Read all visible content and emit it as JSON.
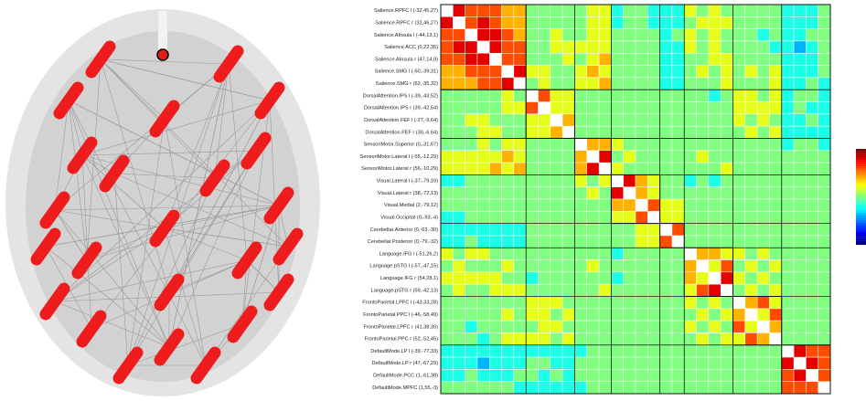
{
  "chart_data": {
    "type": "heatmap",
    "categories": [
      "Salience.RPFC l (-32,45,27)",
      "Salience.RPFC r (32,46,27)",
      "Salience.AInsula l (-44,13,1)",
      "Salience.ACC (0,22,35)",
      "Salience.AInsula r (47,14,0)",
      "Salience.SMG l (-60,-39,31)",
      "Salience.SMG r (62,-35,32)",
      "DorsalAttention.IPS l (-39,-43,52)",
      "DorsalAttention.IPS r (39,-42,54)",
      "DorsalAttention.FEF l (-27,-9,64)",
      "DorsalAttention.FEF r (30,-6,64)",
      "SensoriMotor.Superior (0,-31,67)",
      "SensoriMotor.Lateral l (-55,-12,29)",
      "SensoriMotor.Lateral r (56,-10,29)",
      "Visual.Lateral l (-37,-79,10)",
      "Visual.Lateral r (38,-72,13)",
      "Visual.Medial (2,-79,12)",
      "Visual.Occipital (0,-93,-4)",
      "Cerebellar.Anterior (0,-63,-30)",
      "Cerebellar.Posterior (0,-79,-32)",
      "Language.IFG l (-51,26,2)",
      "Language.pSTG l (-57,-47,15)",
      "Language.IFG r (54,28,1)",
      "Language.pSTG r (59,-42,13)",
      "FrontoParietal.LPFC l (-43,33,28)",
      "FrontoParietal.PPC l (-46,-58,49)",
      "FrontoParietal.LPFC r (41,38,30)",
      "FrontoParietal.PPC r (52,-52,45)",
      "DefaultMode.LP l (-39,-77,33)",
      "DefaultMode.LP r (47,-67,29)",
      "DefaultMode.PCC (1,-61,38)",
      "DefaultMode.MPFC (1,55,-3)"
    ],
    "values": [
      [
        null,
        0.9,
        0.8,
        0.8,
        0.8,
        0.7,
        0.7,
        0.5,
        0.5,
        0.5,
        0.5,
        0.5,
        0.6,
        0.6,
        0.4,
        0.5,
        0.5,
        0.4,
        0.4,
        0.4,
        0.6,
        0.5,
        0.6,
        0.5,
        0.5,
        0.5,
        0.5,
        0.5,
        0.4,
        0.4,
        0.4,
        0.5
      ],
      [
        0.9,
        null,
        0.8,
        0.9,
        0.8,
        0.7,
        0.7,
        0.5,
        0.5,
        0.5,
        0.5,
        0.5,
        0.6,
        0.6,
        0.4,
        0.5,
        0.5,
        0.4,
        0.4,
        0.4,
        0.5,
        0.6,
        0.6,
        0.6,
        0.5,
        0.5,
        0.5,
        0.5,
        0.4,
        0.4,
        0.4,
        0.5
      ],
      [
        0.8,
        0.8,
        null,
        0.9,
        0.9,
        0.8,
        0.7,
        0.5,
        0.5,
        0.6,
        0.5,
        0.5,
        0.6,
        0.6,
        0.5,
        0.5,
        0.5,
        0.5,
        0.4,
        0.5,
        0.6,
        0.5,
        0.6,
        0.5,
        0.5,
        0.5,
        0.4,
        0.5,
        0.4,
        0.4,
        0.5,
        0.5
      ],
      [
        0.8,
        0.9,
        0.9,
        null,
        0.9,
        0.8,
        0.8,
        0.5,
        0.5,
        0.6,
        0.6,
        0.6,
        0.6,
        0.6,
        0.5,
        0.5,
        0.5,
        0.5,
        0.4,
        0.4,
        0.6,
        0.5,
        0.6,
        0.5,
        0.5,
        0.5,
        0.5,
        0.4,
        0.4,
        0.3,
        0.4,
        0.5
      ],
      [
        0.8,
        0.8,
        0.9,
        0.9,
        null,
        0.8,
        0.8,
        0.5,
        0.5,
        0.5,
        0.6,
        0.5,
        0.6,
        0.7,
        0.5,
        0.5,
        0.5,
        0.5,
        0.4,
        0.4,
        0.5,
        0.5,
        0.6,
        0.6,
        0.5,
        0.5,
        0.5,
        0.5,
        0.4,
        0.4,
        0.4,
        0.5
      ],
      [
        0.7,
        0.7,
        0.8,
        0.8,
        0.8,
        null,
        0.9,
        0.6,
        0.6,
        0.5,
        0.5,
        0.6,
        0.7,
        0.6,
        0.5,
        0.5,
        0.5,
        0.5,
        0.4,
        0.4,
        0.5,
        0.6,
        0.5,
        0.6,
        0.5,
        0.6,
        0.5,
        0.6,
        0.4,
        0.4,
        0.4,
        0.5
      ],
      [
        0.7,
        0.7,
        0.7,
        0.8,
        0.8,
        0.9,
        null,
        0.5,
        0.6,
        0.5,
        0.5,
        0.6,
        0.6,
        0.7,
        0.5,
        0.5,
        0.5,
        0.5,
        0.4,
        0.4,
        0.5,
        0.5,
        0.5,
        0.6,
        0.5,
        0.5,
        0.5,
        0.6,
        0.4,
        0.4,
        0.5,
        0.4
      ],
      [
        0.5,
        0.5,
        0.5,
        0.5,
        0.5,
        0.6,
        0.5,
        null,
        0.8,
        0.6,
        0.6,
        0.5,
        0.5,
        0.5,
        0.5,
        0.5,
        0.5,
        0.5,
        0.5,
        0.5,
        0.5,
        0.5,
        0.4,
        0.5,
        0.6,
        0.6,
        0.5,
        0.6,
        0.4,
        0.5,
        0.5,
        0.4
      ],
      [
        0.5,
        0.5,
        0.5,
        0.5,
        0.5,
        0.6,
        0.6,
        0.8,
        null,
        0.6,
        0.6,
        0.5,
        0.5,
        0.5,
        0.5,
        0.5,
        0.5,
        0.5,
        0.5,
        0.5,
        0.5,
        0.5,
        0.5,
        0.5,
        0.6,
        0.6,
        0.6,
        0.6,
        0.4,
        0.5,
        0.4,
        0.4
      ],
      [
        0.5,
        0.5,
        0.6,
        0.6,
        0.5,
        0.5,
        0.5,
        0.6,
        0.6,
        null,
        0.7,
        0.5,
        0.5,
        0.5,
        0.5,
        0.5,
        0.5,
        0.5,
        0.5,
        0.5,
        0.5,
        0.5,
        0.5,
        0.5,
        0.6,
        0.5,
        0.6,
        0.5,
        0.4,
        0.4,
        0.5,
        0.4
      ],
      [
        0.5,
        0.5,
        0.5,
        0.6,
        0.6,
        0.5,
        0.5,
        0.6,
        0.6,
        0.7,
        null,
        0.5,
        0.5,
        0.5,
        0.5,
        0.5,
        0.5,
        0.5,
        0.5,
        0.5,
        0.5,
        0.5,
        0.5,
        0.5,
        0.5,
        0.6,
        0.5,
        0.6,
        0.4,
        0.4,
        0.4,
        0.4
      ],
      [
        0.5,
        0.5,
        0.5,
        0.6,
        0.5,
        0.6,
        0.6,
        0.5,
        0.5,
        0.5,
        0.5,
        null,
        0.7,
        0.7,
        0.6,
        0.5,
        0.5,
        0.5,
        0.5,
        0.5,
        0.5,
        0.5,
        0.5,
        0.5,
        0.5,
        0.5,
        0.5,
        0.5,
        0.4,
        0.5,
        0.5,
        0.4
      ],
      [
        0.6,
        0.6,
        0.6,
        0.6,
        0.6,
        0.7,
        0.6,
        0.5,
        0.5,
        0.5,
        0.5,
        0.7,
        null,
        0.9,
        0.5,
        0.6,
        0.5,
        0.5,
        0.5,
        0.5,
        0.5,
        0.6,
        0.5,
        0.5,
        0.5,
        0.5,
        0.5,
        0.5,
        0.5,
        0.5,
        0.5,
        0.5
      ],
      [
        0.6,
        0.6,
        0.6,
        0.6,
        0.7,
        0.6,
        0.7,
        0.5,
        0.5,
        0.5,
        0.5,
        0.7,
        0.9,
        null,
        0.6,
        0.5,
        0.5,
        0.5,
        0.5,
        0.5,
        0.5,
        0.5,
        0.5,
        0.6,
        0.5,
        0.5,
        0.5,
        0.5,
        0.5,
        0.5,
        0.5,
        0.5
      ],
      [
        0.4,
        0.4,
        0.5,
        0.5,
        0.5,
        0.5,
        0.5,
        0.5,
        0.5,
        0.5,
        0.5,
        0.6,
        0.5,
        0.6,
        null,
        0.9,
        0.7,
        0.6,
        0.5,
        0.5,
        0.4,
        0.5,
        0.4,
        0.5,
        0.5,
        0.5,
        0.5,
        0.5,
        0.5,
        0.5,
        0.5,
        0.5
      ],
      [
        0.5,
        0.5,
        0.5,
        0.5,
        0.5,
        0.5,
        0.5,
        0.5,
        0.5,
        0.5,
        0.5,
        0.5,
        0.6,
        0.5,
        0.9,
        null,
        0.7,
        0.6,
        0.5,
        0.5,
        0.5,
        0.5,
        0.5,
        0.5,
        0.5,
        0.5,
        0.5,
        0.5,
        0.5,
        0.5,
        0.5,
        0.5
      ],
      [
        0.5,
        0.5,
        0.5,
        0.5,
        0.5,
        0.5,
        0.5,
        0.5,
        0.5,
        0.5,
        0.5,
        0.5,
        0.5,
        0.5,
        0.7,
        0.7,
        null,
        0.8,
        0.6,
        0.6,
        0.5,
        0.5,
        0.5,
        0.5,
        0.5,
        0.5,
        0.5,
        0.5,
        0.5,
        0.5,
        0.5,
        0.5
      ],
      [
        0.4,
        0.4,
        0.5,
        0.5,
        0.5,
        0.5,
        0.5,
        0.5,
        0.5,
        0.5,
        0.5,
        0.5,
        0.5,
        0.5,
        0.6,
        0.6,
        0.8,
        null,
        0.6,
        0.6,
        0.5,
        0.5,
        0.5,
        0.5,
        0.5,
        0.5,
        0.5,
        0.5,
        0.5,
        0.5,
        0.5,
        0.5
      ],
      [
        0.4,
        0.4,
        0.4,
        0.4,
        0.4,
        0.4,
        0.4,
        0.5,
        0.5,
        0.5,
        0.5,
        0.5,
        0.5,
        0.5,
        0.5,
        0.5,
        0.6,
        0.6,
        null,
        0.8,
        0.5,
        0.5,
        0.5,
        0.5,
        0.5,
        0.5,
        0.5,
        0.5,
        0.5,
        0.5,
        0.5,
        0.5
      ],
      [
        0.4,
        0.4,
        0.5,
        0.4,
        0.4,
        0.4,
        0.4,
        0.5,
        0.5,
        0.5,
        0.5,
        0.5,
        0.5,
        0.5,
        0.5,
        0.5,
        0.6,
        0.6,
        0.8,
        null,
        0.5,
        0.5,
        0.5,
        0.5,
        0.5,
        0.5,
        0.5,
        0.5,
        0.5,
        0.5,
        0.5,
        0.5
      ],
      [
        0.6,
        0.5,
        0.6,
        0.6,
        0.5,
        0.5,
        0.5,
        0.5,
        0.5,
        0.5,
        0.5,
        0.5,
        0.5,
        0.5,
        0.4,
        0.5,
        0.5,
        0.5,
        0.5,
        0.5,
        null,
        0.7,
        0.7,
        0.6,
        0.6,
        0.5,
        0.6,
        0.5,
        0.5,
        0.5,
        0.5,
        0.5
      ],
      [
        0.5,
        0.6,
        0.5,
        0.5,
        0.5,
        0.6,
        0.5,
        0.5,
        0.5,
        0.5,
        0.5,
        0.5,
        0.6,
        0.5,
        0.5,
        0.5,
        0.5,
        0.5,
        0.5,
        0.5,
        0.7,
        null,
        0.6,
        0.8,
        0.5,
        0.6,
        0.5,
        0.6,
        0.5,
        0.5,
        0.5,
        0.5
      ],
      [
        0.6,
        0.6,
        0.6,
        0.6,
        0.6,
        0.5,
        0.5,
        0.4,
        0.5,
        0.5,
        0.5,
        0.5,
        0.5,
        0.5,
        0.4,
        0.5,
        0.5,
        0.5,
        0.5,
        0.5,
        0.7,
        0.6,
        null,
        0.9,
        0.6,
        0.5,
        0.6,
        0.5,
        0.5,
        0.5,
        0.5,
        0.5
      ],
      [
        0.5,
        0.6,
        0.5,
        0.5,
        0.6,
        0.6,
        0.6,
        0.5,
        0.5,
        0.5,
        0.5,
        0.5,
        0.5,
        0.6,
        0.5,
        0.5,
        0.5,
        0.5,
        0.5,
        0.5,
        0.6,
        0.8,
        0.9,
        null,
        0.5,
        0.6,
        0.5,
        0.6,
        0.5,
        0.5,
        0.5,
        0.5
      ],
      [
        0.5,
        0.5,
        0.5,
        0.5,
        0.5,
        0.5,
        0.5,
        0.6,
        0.6,
        0.6,
        0.5,
        0.5,
        0.5,
        0.5,
        0.5,
        0.5,
        0.5,
        0.5,
        0.5,
        0.5,
        0.6,
        0.5,
        0.6,
        0.5,
        null,
        0.7,
        0.8,
        0.6,
        0.5,
        0.5,
        0.5,
        0.5
      ],
      [
        0.5,
        0.5,
        0.5,
        0.5,
        0.5,
        0.6,
        0.5,
        0.6,
        0.6,
        0.5,
        0.6,
        0.5,
        0.5,
        0.5,
        0.5,
        0.5,
        0.5,
        0.5,
        0.5,
        0.5,
        0.5,
        0.6,
        0.5,
        0.6,
        0.7,
        null,
        0.6,
        0.8,
        0.5,
        0.5,
        0.5,
        0.5
      ],
      [
        0.5,
        0.5,
        0.4,
        0.5,
        0.5,
        0.5,
        0.5,
        0.5,
        0.6,
        0.6,
        0.5,
        0.5,
        0.5,
        0.5,
        0.5,
        0.5,
        0.5,
        0.5,
        0.5,
        0.5,
        0.6,
        0.5,
        0.6,
        0.5,
        0.8,
        0.6,
        null,
        0.7,
        0.5,
        0.5,
        0.5,
        0.5
      ],
      [
        0.5,
        0.5,
        0.5,
        0.4,
        0.5,
        0.6,
        0.6,
        0.6,
        0.6,
        0.5,
        0.6,
        0.5,
        0.5,
        0.5,
        0.5,
        0.5,
        0.5,
        0.5,
        0.5,
        0.5,
        0.5,
        0.6,
        0.5,
        0.6,
        0.6,
        0.8,
        0.7,
        null,
        0.5,
        0.5,
        0.5,
        0.5
      ],
      [
        0.4,
        0.4,
        0.4,
        0.4,
        0.4,
        0.4,
        0.4,
        0.4,
        0.4,
        0.4,
        0.4,
        0.4,
        0.5,
        0.5,
        0.5,
        0.5,
        0.5,
        0.5,
        0.5,
        0.5,
        0.5,
        0.5,
        0.5,
        0.5,
        0.5,
        0.5,
        0.5,
        0.5,
        null,
        0.9,
        0.8,
        0.8
      ],
      [
        0.4,
        0.4,
        0.4,
        0.3,
        0.4,
        0.4,
        0.4,
        0.5,
        0.5,
        0.4,
        0.4,
        0.5,
        0.5,
        0.5,
        0.5,
        0.5,
        0.5,
        0.5,
        0.5,
        0.5,
        0.5,
        0.5,
        0.5,
        0.5,
        0.5,
        0.5,
        0.5,
        0.5,
        0.9,
        null,
        0.9,
        0.8
      ],
      [
        0.4,
        0.4,
        0.5,
        0.4,
        0.4,
        0.4,
        0.5,
        0.5,
        0.4,
        0.5,
        0.4,
        0.5,
        0.5,
        0.5,
        0.5,
        0.5,
        0.5,
        0.5,
        0.5,
        0.5,
        0.5,
        0.5,
        0.5,
        0.5,
        0.5,
        0.5,
        0.5,
        0.5,
        0.8,
        0.9,
        null,
        0.8
      ],
      [
        0.5,
        0.5,
        0.5,
        0.5,
        0.5,
        0.5,
        0.4,
        0.4,
        0.4,
        0.4,
        0.4,
        0.4,
        0.5,
        0.5,
        0.5,
        0.5,
        0.5,
        0.5,
        0.5,
        0.5,
        0.5,
        0.5,
        0.5,
        0.5,
        0.5,
        0.5,
        0.5,
        0.5,
        0.8,
        0.8,
        0.8,
        null
      ]
    ],
    "clim": [
      0,
      1
    ],
    "colormap": "jet"
  }
}
